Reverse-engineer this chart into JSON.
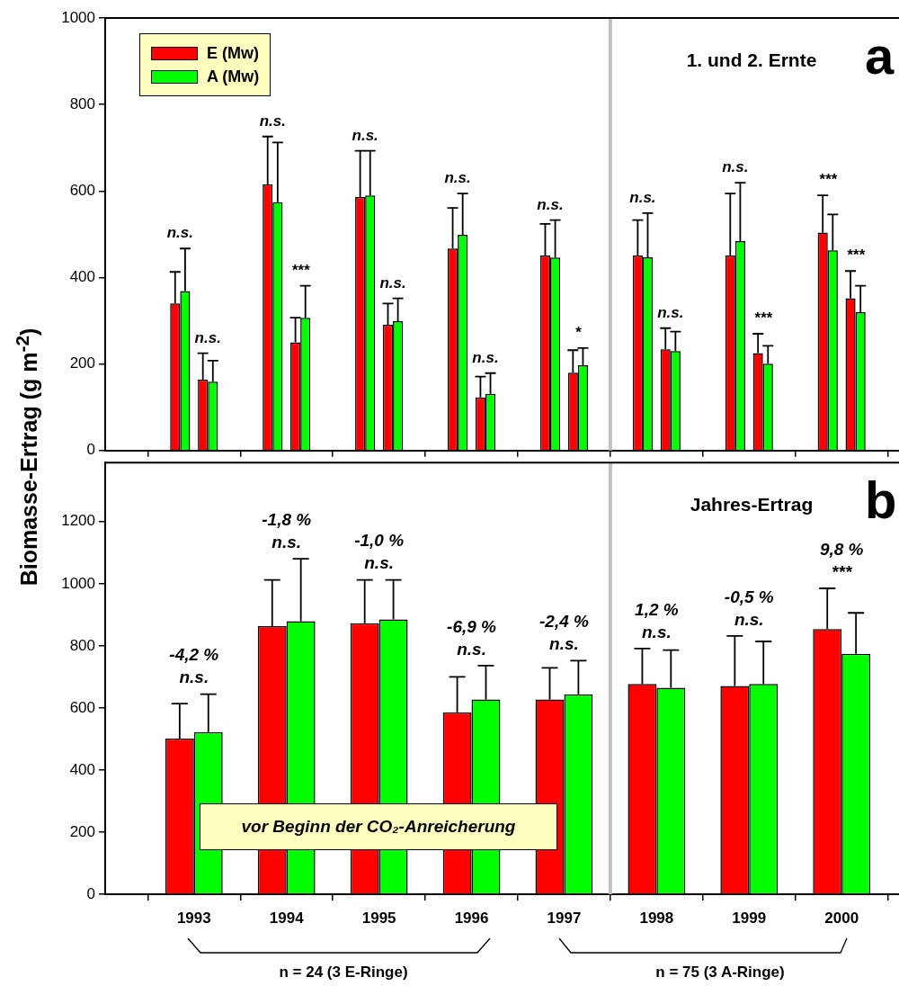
{
  "chart_data": [
    {
      "type": "bar",
      "title": "1. und 2. Ernte",
      "ylabel": "Biomasse-Ertrag (g m$^{-2}$)",
      "x": [
        1992.85,
        1993.15,
        1993.85,
        1994.15,
        1994.85,
        1995.15,
        1995.85,
        1996.15,
        1996.85,
        1997.15,
        1997.85,
        1998.15,
        1998.85,
        1999.15,
        1999.85,
        2000.15
      ],
      "xlim": [
        1992.04,
        2000.62
      ],
      "xticks": [
        1993,
        1994,
        1995,
        1996,
        1997,
        1998,
        1999,
        2000
      ],
      "ylim": [
        0,
        1000
      ],
      "yticks": [
        0,
        200,
        400,
        600,
        800,
        1000
      ],
      "tick_labels": "y",
      "legend": "top left",
      "series": [
        {
          "name": "E (Mw)",
          "color": "#ff0000",
          "values": [
            340,
            164,
            615,
            250,
            586,
            291,
            467,
            123,
            451,
            180,
            451,
            234,
            451,
            225,
            504,
            352
          ],
          "errors": [
            [
              340,
              413
            ],
            [
              164,
              225
            ],
            [
              615,
              726
            ],
            [
              250,
              307
            ],
            [
              586,
              693
            ],
            [
              291,
              340
            ],
            [
              467,
              561
            ],
            [
              123,
              171
            ],
            [
              451,
              524
            ],
            [
              180,
              232
            ],
            [
              451,
              533
            ],
            [
              234,
              283
            ],
            [
              451,
              594
            ],
            [
              225,
              270
            ],
            [
              504,
              590
            ],
            [
              352,
              415
            ]
          ]
        },
        {
          "name": "A (Mw)",
          "color": "#00ff00",
          "values": [
            369,
            159,
            574,
            307,
            590,
            299,
            499,
            131,
            446,
            197,
            447,
            230,
            484,
            201,
            463,
            320
          ],
          "errors": [
            [
              369,
              467
            ],
            [
              159,
              208
            ],
            [
              574,
              712
            ],
            [
              307,
              381
            ],
            [
              590,
              693
            ],
            [
              299,
              352
            ],
            [
              499,
              594
            ],
            [
              131,
              179
            ],
            [
              446,
              533
            ],
            [
              197,
              237
            ],
            [
              447,
              549
            ],
            [
              230,
              275
            ],
            [
              484,
              619
            ],
            [
              201,
              242
            ],
            [
              463,
              546
            ],
            [
              320,
              381
            ]
          ]
        }
      ],
      "ref_lines": [
        {
          "axis": "x",
          "value": 1997.5,
          "color": "#c0c0c0"
        }
      ],
      "annotations": [
        "a",
        {
          "text": "n.s.",
          "x": 1992.85,
          "y": 467
        },
        {
          "text": "n.s.",
          "x": 1993.15,
          "y": 225
        },
        {
          "text": "n.s.",
          "x": 1993.85,
          "y": 726
        },
        {
          "text": "***",
          "x": 1994.15,
          "y": 381
        },
        {
          "text": "n.s.",
          "x": 1994.85,
          "y": 693
        },
        {
          "text": "n.s.",
          "x": 1995.15,
          "y": 352
        },
        {
          "text": "n.s.",
          "x": 1995.85,
          "y": 594
        },
        {
          "text": "n.s.",
          "x": 1996.15,
          "y": 179
        },
        {
          "text": "n.s.",
          "x": 1996.85,
          "y": 533
        },
        {
          "text": "*",
          "x": 1997.15,
          "y": 237
        },
        {
          "text": "n.s.",
          "x": 1997.85,
          "y": 549
        },
        {
          "text": "n.s.",
          "x": 1998.15,
          "y": 283
        },
        {
          "text": "n.s.",
          "x": 1998.85,
          "y": 619
        },
        {
          "text": "***",
          "x": 1999.15,
          "y": 270
        },
        {
          "text": "***",
          "x": 1999.85,
          "y": 590
        },
        {
          "text": "***",
          "x": 2000.15,
          "y": 415
        }
      ]
    },
    {
      "type": "bar",
      "title": "Jahres-Ertrag",
      "x": [
        1993,
        1994,
        1995,
        1996,
        1997,
        1998,
        1999,
        2000
      ],
      "xlim": [
        1992.04,
        2000.62
      ],
      "xticks": [
        1993,
        1994,
        1995,
        1996,
        1997,
        1998,
        1999,
        2000
      ],
      "ylim": [
        0,
        1390
      ],
      "yticks": [
        0,
        200,
        400,
        600,
        800,
        1000,
        1200
      ],
      "series": [
        {
          "color": "#ff0000",
          "values": [
            501,
            863,
            873,
            586,
            627,
            677,
            671,
            854
          ],
          "errors": [
            [
              501,
              614
            ],
            [
              863,
              1012
            ],
            [
              873,
              1012
            ],
            [
              586,
              700
            ],
            [
              627,
              729
            ],
            [
              677,
              791
            ],
            [
              671,
              832
            ],
            [
              854,
              985
            ]
          ]
        },
        {
          "color": "#00ff00",
          "values": [
            522,
            879,
            885,
            627,
            644,
            665,
            677,
            774
          ],
          "errors": [
            [
              522,
              644
            ],
            [
              879,
              1080
            ],
            [
              885,
              1012
            ],
            [
              627,
              736
            ],
            [
              644,
              752
            ],
            [
              665,
              786
            ],
            [
              677,
              814
            ],
            [
              774,
              906
            ]
          ]
        }
      ],
      "ref_lines": [
        {
          "axis": "x",
          "value": 1997.5,
          "color": "#c0c0c0"
        }
      ],
      "annotations": [
        "b",
        "vor Beginn der CO₂-Anreicherung",
        "n = 24  (3 E-Ringe)",
        "n = 75  (3 A-Ringe)",
        "n.s.",
        "-4,2 %",
        "n.s.",
        "-1,8 %",
        "n.s.",
        "-1,0 %",
        "n.s.",
        "-6,9 %",
        "n.s.",
        "-2,4 %",
        "n.s.",
        "1,2 %",
        "n.s.",
        "-0,5 %",
        "***",
        "9,8 %"
      ]
    }
  ]
}
